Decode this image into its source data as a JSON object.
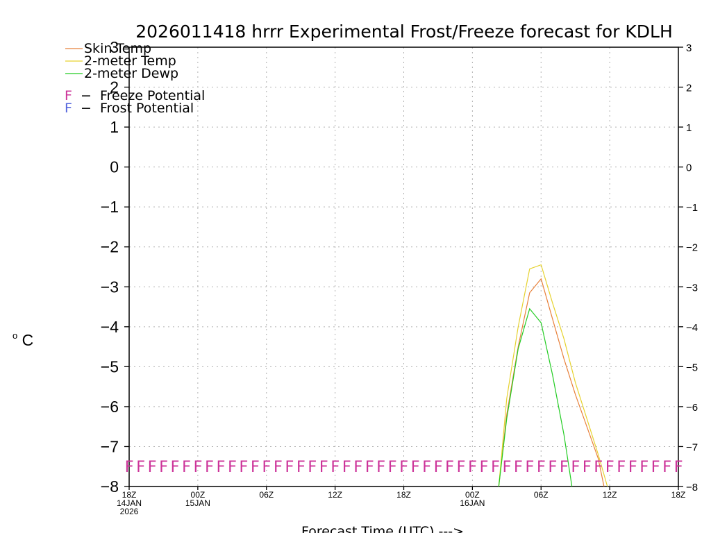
{
  "chart_data": {
    "type": "line",
    "title": "2026011418 hrrr Experimental Frost/Freeze forecast for KDLH",
    "xlabel": "Forecast Time (UTC) --->",
    "ylabel_degree": "o",
    "ylabel_unit": "C",
    "ylim": [
      -8,
      3
    ],
    "xlim": [
      0,
      48
    ],
    "yticks": [
      3,
      2,
      1,
      0,
      -1,
      -2,
      -3,
      -4,
      -5,
      -6,
      -7,
      -8
    ],
    "ytick_labels": [
      "3",
      "2",
      "1",
      "0",
      "−1",
      "−2",
      "−3",
      "−4",
      "−5",
      "−6",
      "−7",
      "−8"
    ],
    "xticks": [
      {
        "x": 0,
        "lines": [
          "18Z",
          "14JAN",
          "2026"
        ]
      },
      {
        "x": 6,
        "lines": [
          "00Z",
          "15JAN"
        ]
      },
      {
        "x": 12,
        "lines": [
          "06Z"
        ]
      },
      {
        "x": 18,
        "lines": [
          "12Z"
        ]
      },
      {
        "x": 24,
        "lines": [
          "18Z"
        ]
      },
      {
        "x": 30,
        "lines": [
          "00Z",
          "16JAN"
        ]
      },
      {
        "x": 36,
        "lines": [
          "06Z"
        ]
      },
      {
        "x": 42,
        "lines": [
          "12Z"
        ]
      },
      {
        "x": 48,
        "lines": [
          "18Z"
        ]
      }
    ],
    "grid": true,
    "legend": [
      {
        "label": "Skin Temp",
        "color": "#e8803a"
      },
      {
        "label": "2-meter Temp",
        "color": "#e6d22e"
      },
      {
        "label": "2-meter Dewp",
        "color": "#22cc22"
      }
    ],
    "flag_legend": [
      {
        "symbol": "F",
        "label": "  −  Freeze Potential",
        "color": "#cc3399"
      },
      {
        "symbol": "F",
        "label": "  −  Frost Potential",
        "color": "#5566dd"
      }
    ],
    "series": [
      {
        "name": "Skin Temp",
        "color": "#e8803a",
        "x": [
          32.3,
          33,
          34,
          35,
          36,
          37,
          38,
          39,
          40,
          41,
          41.5
        ],
        "y": [
          -8,
          -6.2,
          -4.5,
          -3.15,
          -2.8,
          -3.8,
          -4.8,
          -5.7,
          -6.5,
          -7.3,
          -8
        ]
      },
      {
        "name": "2-meter Temp",
        "color": "#e6d22e",
        "x": [
          32.3,
          33,
          34,
          35,
          36,
          37,
          38,
          39,
          40,
          41,
          41.8
        ],
        "y": [
          -8,
          -5.8,
          -4,
          -2.55,
          -2.45,
          -3.4,
          -4.3,
          -5.4,
          -6.3,
          -7.2,
          -8
        ]
      },
      {
        "name": "2-meter Dewp",
        "color": "#22cc22",
        "x": [
          32.3,
          33,
          34,
          35,
          36,
          37,
          38,
          38.7
        ],
        "y": [
          -8,
          -6.3,
          -4.55,
          -3.55,
          -3.9,
          -5.2,
          -6.7,
          -8
        ]
      }
    ],
    "freeze_flags": {
      "symbol": "F",
      "color": "#cc3399",
      "level": -7.5,
      "count": 49
    }
  }
}
